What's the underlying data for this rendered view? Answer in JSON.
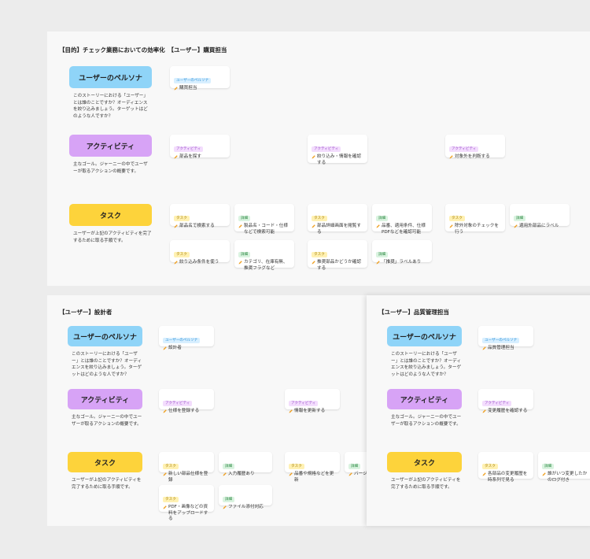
{
  "panels": [
    {
      "title": "【目的】チェック業務においての効率化　【ユーザー】購買担当",
      "rows": [
        {
          "label": "ユーザーのペルソナ",
          "description": "このストーリーにおける「ユーザー」とは誰のことですか？オーディエンスを絞り込みましょう。ターゲットはどのような人ですか？"
        },
        {
          "label": "アクティビティ",
          "description": "主なゴール。ジャーニーの中でユーザーが取るアクションの概要です。"
        },
        {
          "label": "タスク",
          "description": "ユーザーが上記のアクティビティを完了するために取る手順です。"
        }
      ],
      "cards": [
        {
          "tag": "ユーザーのペルソナ",
          "text": "購買担当"
        },
        {
          "tag": "アクティビティ",
          "text": "部品を探す"
        },
        {
          "tag": "アクティビティ",
          "text": "絞り込み・情報を確認する"
        },
        {
          "tag": "アクティビティ",
          "text": "対象外を判断する"
        },
        {
          "tag": "タスク",
          "text": "部品名で検索する"
        },
        {
          "tag": "詳細",
          "text": "製品名・コード・仕様などで検索可能"
        },
        {
          "tag": "タスク",
          "text": "絞り込み条件を使う"
        },
        {
          "tag": "詳細",
          "text": "カテゴリ、在庫有無、推奨フラグなど"
        },
        {
          "tag": "タスク",
          "text": "部品詳細画面を閲覧する"
        },
        {
          "tag": "詳細",
          "text": "品番、適用条件、仕様PDFなどを確認可能"
        },
        {
          "tag": "タスク",
          "text": "推奨部品かどうか確認する"
        },
        {
          "tag": "詳細",
          "text": "「推奨」ラベルあり"
        },
        {
          "tag": "タスク",
          "text": "除外対象のチェックを行う"
        },
        {
          "tag": "詳細",
          "text": "適用外部品にラベル"
        }
      ]
    },
    {
      "title": "【ユーザー】設計者",
      "rows": [
        {
          "label": "ユーザーのペルソナ",
          "description": "このストーリーにおける「ユーザー」とは誰のことですか？オーディエンスを絞り込みましょう。ターゲットはどのような人ですか？"
        },
        {
          "label": "アクティビティ",
          "description": "主なゴール。ジャーニーの中でユーザーが取るアクションの概要です。"
        },
        {
          "label": "タスク",
          "description": "ユーザーが上記のアクティビティを完了するために取る手順です。"
        }
      ],
      "cards": [
        {
          "tag": "ユーザーのペルソナ",
          "text": "設計者"
        },
        {
          "tag": "アクティビティ",
          "text": "仕様を登録する"
        },
        {
          "tag": "アクティビティ",
          "text": "情報を更新する"
        },
        {
          "tag": "タスク",
          "text": "新しい部品仕様を登録"
        },
        {
          "tag": "詳細",
          "text": "入力履歴あり"
        },
        {
          "tag": "タスク",
          "text": "PDF・画像などの資料をアップロードする"
        },
        {
          "tag": "詳細",
          "text": "ファイル添付対応"
        },
        {
          "tag": "タスク",
          "text": "品番や規格などを更新"
        },
        {
          "tag": "詳細",
          "text": "バージ"
        }
      ]
    },
    {
      "title": "【ユーザー】品質管理担当",
      "rows": [
        {
          "label": "ユーザーのペルソナ",
          "description": "このストーリーにおける「ユーザー」とは誰のことですか？オーディエンスを絞り込みましょう。ターゲットはどのような人ですか？"
        },
        {
          "label": "アクティビティ",
          "description": "主なゴール。ジャーニーの中でユーザーが取るアクションの概要です。"
        },
        {
          "label": "タスク",
          "description": "ユーザーが上記のアクティビティを完了するために取る手順です。"
        }
      ],
      "cards": [
        {
          "tag": "ユーザーのペルソナ",
          "text": "品質管理担当"
        },
        {
          "tag": "アクティビティ",
          "text": "変更履歴を確認する"
        },
        {
          "tag": "タスク",
          "text": "各部品の変更履歴を時系列で見る"
        },
        {
          "tag": "詳細",
          "text": "誰がいつ変更したかのログ付き"
        }
      ]
    }
  ]
}
